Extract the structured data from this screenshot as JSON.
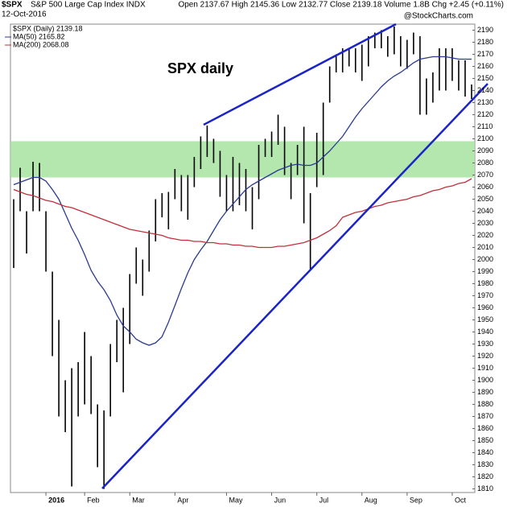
{
  "chart_data": {
    "type": "ohlc",
    "symbol": "$SPX",
    "title": "S&P 500 Large Cap Index INDX",
    "date": "12-Oct-2016",
    "quote": "Open 2137.67 High 2145.36 Low 2132.77 Close 2139.18 Volume 1.8B Chg +2.45 (+0.11%)",
    "watermark": "@StockCharts.com",
    "annotation": "SPX daily",
    "zone": [
      2068,
      2098
    ],
    "zone_color": "#a6e3a0",
    "ylim": [
      1807,
      2195
    ],
    "yticks": [
      1810,
      1820,
      1830,
      1840,
      1850,
      1860,
      1870,
      1880,
      1890,
      1900,
      1910,
      1920,
      1930,
      1940,
      1950,
      1960,
      1970,
      1980,
      1990,
      2000,
      2010,
      2020,
      2030,
      2040,
      2050,
      2060,
      2070,
      2080,
      2090,
      2100,
      2110,
      2120,
      2130,
      2140,
      2150,
      2160,
      2170,
      2180,
      2190
    ],
    "categories": [
      null,
      null,
      null,
      null,
      null,
      "2016",
      null,
      null,
      null,
      null,
      null,
      "Feb",
      null,
      null,
      null,
      null,
      null,
      null,
      "Mar",
      null,
      null,
      null,
      null,
      null,
      null,
      "Apr",
      null,
      null,
      null,
      null,
      null,
      null,
      null,
      "May",
      null,
      null,
      null,
      null,
      null,
      null,
      "Jun",
      null,
      null,
      null,
      null,
      null,
      null,
      "Jul",
      null,
      null,
      null,
      null,
      null,
      null,
      "Aug",
      null,
      null,
      null,
      null,
      null,
      null,
      "Sep",
      null,
      null,
      null,
      null,
      null,
      null,
      "Oct",
      null,
      null,
      null
    ],
    "price": {
      "name": "$SPX (Daily) 2139.18",
      "color": "#000000",
      "high": [
        2050,
        2076,
        2040,
        2081,
        2080,
        2040,
        1990,
        1950,
        1900,
        1910,
        1915,
        1940,
        1920,
        1880,
        1875,
        1930,
        1950,
        1960,
        1988,
        2010,
        2000,
        2024,
        2050,
        2055,
        2056,
        2075,
        2070,
        2070,
        2085,
        2102,
        2111,
        2100,
        2090,
        2070,
        2085,
        2080,
        2075,
        2060,
        2095,
        2100,
        2106,
        2120,
        2110,
        2080,
        2095,
        2110,
        2055,
        2105,
        2130,
        2160,
        2170,
        2175,
        2175,
        2175,
        2178,
        2185,
        2188,
        2190,
        2185,
        2193,
        2185,
        2182,
        2188,
        2185,
        2150,
        2155,
        2175,
        2175,
        2175,
        2165,
        2165,
        2145
      ],
      "low": [
        1993,
        2040,
        2005,
        2040,
        2040,
        1990,
        1920,
        1870,
        1857,
        1812,
        1870,
        1880,
        1872,
        1828,
        1810,
        1870,
        1915,
        1890,
        1930,
        1980,
        1970,
        1990,
        2015,
        2035,
        2025,
        2050,
        2040,
        2033,
        2060,
        2075,
        2085,
        2080,
        2052,
        2040,
        2040,
        2045,
        2040,
        2025,
        2050,
        2085,
        2085,
        2095,
        2070,
        2050,
        2070,
        2030,
        1991,
        2060,
        2070,
        2130,
        2155,
        2155,
        2160,
        2155,
        2148,
        2160,
        2175,
        2175,
        2168,
        2170,
        2160,
        2158,
        2170,
        2120,
        2120,
        2130,
        2140,
        2140,
        2148,
        2140,
        2135,
        2133
      ]
    },
    "series": [
      {
        "name": "MA(50) 2165.82",
        "color": "#2b3a8f",
        "values": [
          2062,
          2064,
          2066,
          2068,
          2068,
          2065,
          2058,
          2050,
          2038,
          2026,
          2016,
          2004,
          1991,
          1982,
          1975,
          1966,
          1954,
          1945,
          1940,
          1934,
          1931,
          1929,
          1931,
          1936,
          1948,
          1962,
          1976,
          1989,
          2000,
          2008,
          2015,
          2024,
          2033,
          2040,
          2046,
          2052,
          2058,
          2062,
          2065,
          2068,
          2071,
          2074,
          2076,
          2078,
          2079,
          2078,
          2078,
          2080,
          2085,
          2090,
          2096,
          2102,
          2110,
          2118,
          2125,
          2131,
          2137,
          2143,
          2148,
          2152,
          2155,
          2159,
          2163,
          2166,
          2167,
          2168,
          2168,
          2168,
          2167,
          2166,
          2166,
          2166
        ]
      },
      {
        "name": "MA(200) 2068.08",
        "color": "#c0303a",
        "values": [
          2058,
          2056,
          2054,
          2053,
          2051,
          2049,
          2048,
          2046,
          2044,
          2043,
          2041,
          2039,
          2037,
          2035,
          2033,
          2031,
          2029,
          2027,
          2025,
          2024,
          2023,
          2022,
          2021,
          2020,
          2018,
          2017,
          2016,
          2016,
          2015,
          2015,
          2014,
          2014,
          2013,
          2013,
          2012,
          2012,
          2011,
          2011,
          2010,
          2010,
          2010,
          2011,
          2011,
          2012,
          2013,
          2014,
          2016,
          2018,
          2021,
          2024,
          2028,
          2035,
          2037,
          2039,
          2040,
          2042,
          2044,
          2045,
          2047,
          2048,
          2049,
          2050,
          2052,
          2053,
          2055,
          2057,
          2058,
          2060,
          2061,
          2063,
          2064,
          2067
        ]
      }
    ]
  }
}
